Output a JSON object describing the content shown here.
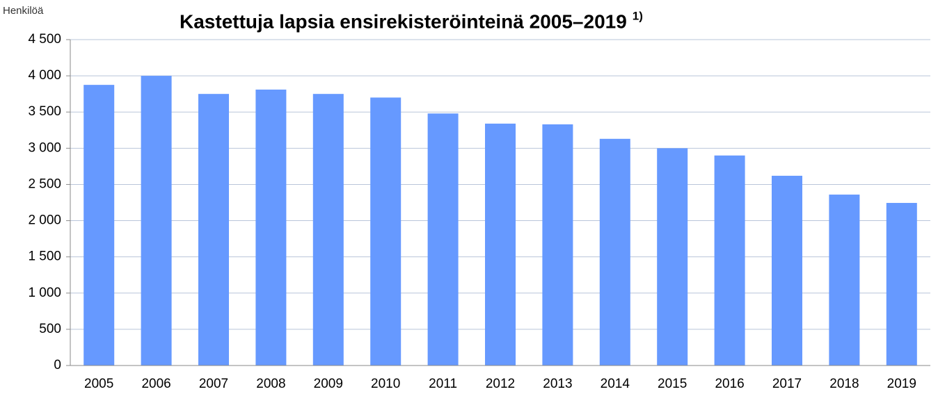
{
  "chart_data": {
    "type": "bar",
    "title": "Kastettuja lapsia ensirekisteröinteinä 2005–2019",
    "title_note": "1)",
    "y_label": "Henkilöä",
    "categories": [
      "2005",
      "2006",
      "2007",
      "2008",
      "2009",
      "2010",
      "2011",
      "2012",
      "2013",
      "2014",
      "2015",
      "2016",
      "2017",
      "2018",
      "2019"
    ],
    "values": [
      3875,
      4000,
      3750,
      3810,
      3750,
      3700,
      3480,
      3340,
      3330,
      3130,
      3000,
      2900,
      2620,
      2360,
      2245
    ],
    "color": "#6699ff",
    "ylim": [
      0,
      4500
    ],
    "yticks": [
      0,
      500,
      {
        "value": 1000,
        "label": "1 000"
      },
      {
        "value": 1500,
        "label": "1 500"
      },
      {
        "value": 2000,
        "label": "2 000"
      },
      {
        "value": 2500,
        "label": "2 500"
      },
      {
        "value": 3000,
        "label": "3 000"
      },
      {
        "value": 3500,
        "label": "3 500"
      },
      {
        "value": 4000,
        "label": "4 000"
      },
      {
        "value": 4500,
        "label": "4 500"
      }
    ],
    "grid": true
  }
}
